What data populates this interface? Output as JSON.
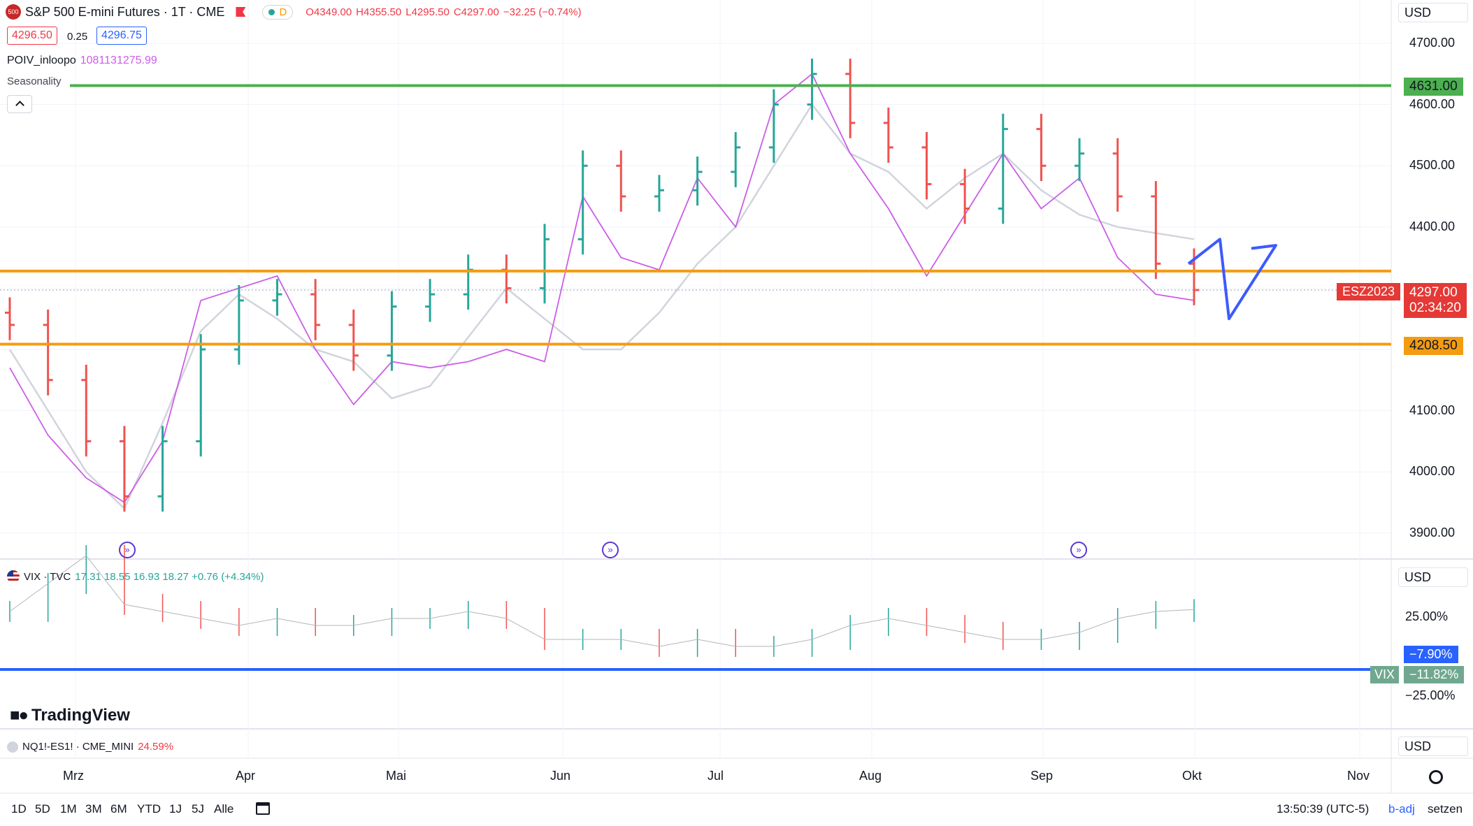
{
  "header": {
    "symbol_icon": "500",
    "title": "S&P 500 E-mini Futures · 1T · CME",
    "flag_icon": "flag-icon",
    "d_badge": "D",
    "ohlc": {
      "o": "O4349.00",
      "h": "H4355.50",
      "l": "L4295.50",
      "c": "C4297.00",
      "chg": "−32.25 (−0.74%)"
    },
    "bid": "4296.50",
    "spread": "0.25",
    "ask": "4296.75"
  },
  "indicators": {
    "poiv_name": "POIV_inloopo",
    "poiv_value": "1081131275.99",
    "seasonality": "Seasonality",
    "collapse_icon": "chevron-up-icon"
  },
  "colors": {
    "up": "#26a69a",
    "down": "#ef5350",
    "seasonality": "#d1d4dc",
    "poiv": "#cc5de8",
    "green_line": "#4caf50",
    "orange_line": "#f39c12",
    "blue_line": "#2962ff",
    "arrow": "#3d5afe"
  },
  "main_axis": {
    "currency": "USD",
    "ticks": [
      "4700.00",
      "4600.00",
      "4500.00",
      "4400.00",
      "4100.00",
      "4000.00",
      "3900.00"
    ],
    "level_4631": "4631.00",
    "level_4208": "4208.50",
    "last_price": "4297.00",
    "countdown": "02:34:20",
    "contract": "ESZ2023"
  },
  "vix": {
    "name": "VIX · TVC",
    "values": "17.31  18.55  16.93  18.27  +0.76 (+4.34%)",
    "currency": "USD",
    "ticks": [
      "25.00%",
      "−25.00%"
    ],
    "line_label": "−7.90%",
    "tag": "VIX",
    "tag_value": "−11.82%"
  },
  "bottom_indicator": {
    "name": "NQ1!-ES1! · CME_MINI",
    "value": "24.59%",
    "currency": "USD"
  },
  "x_axis": [
    "Mrz",
    "Apr",
    "Mai",
    "Jun",
    "Jul",
    "Aug",
    "Sep",
    "Okt",
    "Nov"
  ],
  "toolbar": {
    "ranges": [
      "1D",
      "5D",
      "1M",
      "3M",
      "6M",
      "YTD",
      "1J",
      "5J",
      "Alle"
    ],
    "calendar_icon": "calendar-icon",
    "time": "13:50:39 (UTC-5)",
    "badj": "b-adj",
    "setzen": "setzen",
    "settings_icon": "gear-icon"
  },
  "brand": {
    "logo": "TradingView"
  },
  "chart_data": {
    "type": "bar",
    "x": [
      "2023-03-01",
      "2023-03-08",
      "2023-03-15",
      "2023-03-22",
      "2023-03-29",
      "2023-04-05",
      "2023-04-12",
      "2023-04-19",
      "2023-04-26",
      "2023-05-03",
      "2023-05-10",
      "2023-05-17",
      "2023-05-24",
      "2023-05-31",
      "2023-06-07",
      "2023-06-14",
      "2023-06-21",
      "2023-06-28",
      "2023-07-05",
      "2023-07-12",
      "2023-07-19",
      "2023-07-26",
      "2023-08-02",
      "2023-08-09",
      "2023-08-16",
      "2023-08-23",
      "2023-08-30",
      "2023-09-06",
      "2023-09-13",
      "2023-09-20",
      "2023-09-27",
      "2023-09-29"
    ],
    "close": [
      4240,
      4150,
      4050,
      3960,
      4050,
      4200,
      4280,
      4290,
      4240,
      4190,
      4270,
      4290,
      4330,
      4300,
      4380,
      4500,
      4450,
      4460,
      4490,
      4530,
      4600,
      4650,
      4570,
      4530,
      4470,
      4430,
      4560,
      4500,
      4520,
      4450,
      4340,
      4297
    ],
    "seasonality": [
      4200,
      4100,
      4000,
      3940,
      4080,
      4230,
      4290,
      4250,
      4200,
      4180,
      4120,
      4140,
      4220,
      4300,
      4250,
      4200,
      4200,
      4260,
      4340,
      4400,
      4500,
      4600,
      4520,
      4490,
      4430,
      4480,
      4520,
      4460,
      4420,
      4400,
      4390,
      4380
    ],
    "poiv": [
      4170,
      4060,
      3990,
      3950,
      4050,
      4280,
      4300,
      4320,
      4200,
      4110,
      4180,
      4170,
      4180,
      4200,
      4180,
      4450,
      4350,
      4330,
      4480,
      4400,
      4600,
      4650,
      4520,
      4430,
      4320,
      4420,
      4520,
      4430,
      4480,
      4350,
      4290,
      4280
    ],
    "levels": [
      4631.0,
      4328.0,
      4208.5
    ],
    "ylim": [
      3860,
      4730
    ],
    "vix_close": [
      18,
      22,
      26,
      19,
      18,
      17,
      16,
      17,
      16,
      16,
      17,
      17,
      18,
      17,
      14,
      14,
      14,
      13,
      14,
      13,
      13,
      14,
      16,
      17,
      16,
      15,
      14,
      14,
      15,
      17,
      18,
      18.27
    ],
    "vix_level": -7.9
  }
}
